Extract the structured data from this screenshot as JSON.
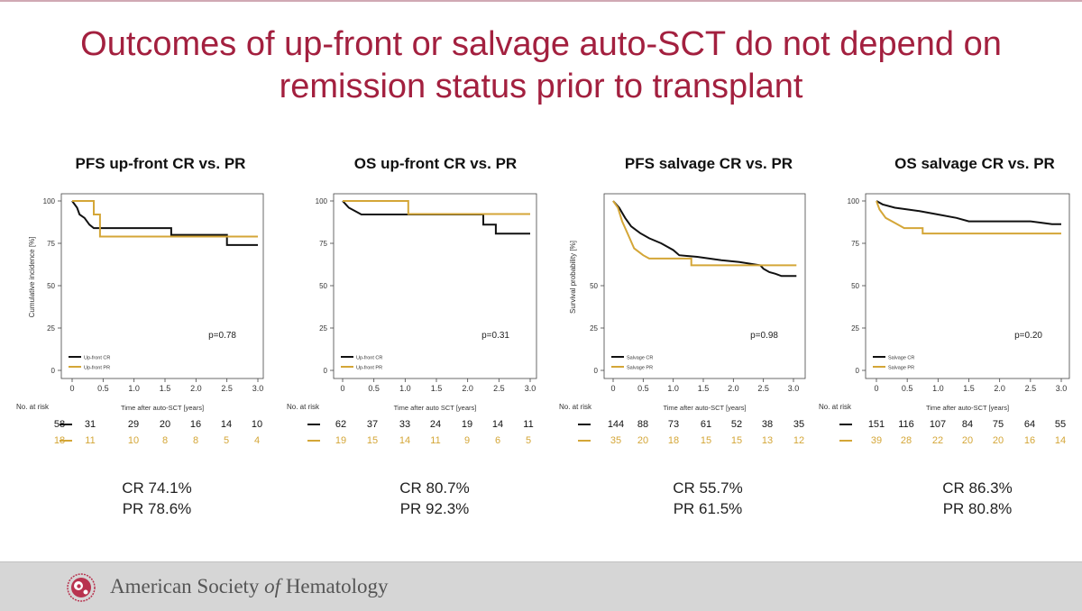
{
  "slide": {
    "title_line1": "Outcomes of up-front or salvage auto-SCT do not depend on",
    "title_line2": "remission status prior to transplant",
    "footer": {
      "org_pre": "American Society ",
      "org_of": "of",
      "org_post": " Hematology"
    }
  },
  "colors": {
    "title": "#a3203f",
    "cr": "#111111",
    "pr": "#d4a637"
  },
  "chart_data": [
    {
      "type": "line",
      "title": "PFS up-front CR vs. PR",
      "ylabel": "Cumulative incidence [%]",
      "xlabel": "Time after auto-SCT [years]",
      "xlim": [
        0,
        3
      ],
      "ylim": [
        0,
        100
      ],
      "x_ticks": [
        "0",
        "0.5",
        "1.0",
        "1.5",
        "2.0",
        "2.5",
        "3.0"
      ],
      "y_ticks": [
        "0",
        "25",
        "50",
        "75",
        "100"
      ],
      "p_value": "p=0.78",
      "series": [
        {
          "name": "Up-front CR",
          "color": "#111111",
          "points": [
            [
              0,
              100
            ],
            [
              0.08,
              96
            ],
            [
              0.12,
              92
            ],
            [
              0.2,
              90
            ],
            [
              0.28,
              86
            ],
            [
              0.35,
              84
            ],
            [
              1.6,
              84
            ],
            [
              1.6,
              80
            ],
            [
              2.5,
              80
            ],
            [
              2.5,
              74
            ],
            [
              3.0,
              74
            ]
          ]
        },
        {
          "name": "Up-front PR",
          "color": "#d4a637",
          "points": [
            [
              0,
              100
            ],
            [
              0.35,
              100
            ],
            [
              0.35,
              92
            ],
            [
              0.45,
              92
            ],
            [
              0.45,
              79
            ],
            [
              3.0,
              79
            ]
          ]
        }
      ],
      "at_risk": {
        "label": "No. at risk",
        "rows": [
          {
            "color": "#111111",
            "values": [
              "58",
              "31",
              "29",
              "20",
              "16",
              "14",
              "10"
            ]
          },
          {
            "color": "#d4a637",
            "values": [
              "18",
              "11",
              "10",
              "8",
              "8",
              "5",
              "4"
            ]
          }
        ]
      },
      "summary": {
        "cr": "CR 74.1%",
        "pr": "PR 78.6%"
      }
    },
    {
      "type": "line",
      "title": "OS up-front CR vs. PR",
      "ylabel": "",
      "xlabel": "Time after auto SCT [years]",
      "xlim": [
        0,
        3
      ],
      "ylim": [
        0,
        100
      ],
      "x_ticks": [
        "0",
        "0.5",
        "1.0",
        "1.5",
        "2.0",
        "2.5",
        "3.0"
      ],
      "y_ticks": [
        "0",
        "25",
        "50",
        "75",
        "100"
      ],
      "p_value": "p=0.31",
      "series": [
        {
          "name": "Up-front CR",
          "color": "#111111",
          "points": [
            [
              0,
              100
            ],
            [
              0.05,
              98
            ],
            [
              0.1,
              96
            ],
            [
              0.2,
              94
            ],
            [
              0.3,
              92
            ],
            [
              2.25,
              92
            ],
            [
              2.25,
              86
            ],
            [
              2.45,
              86
            ],
            [
              2.45,
              80.7
            ],
            [
              3.0,
              80.7
            ]
          ]
        },
        {
          "name": "Up-front PR",
          "color": "#d4a637",
          "points": [
            [
              0,
              100
            ],
            [
              1.05,
              100
            ],
            [
              1.05,
              92.3
            ],
            [
              3.0,
              92.3
            ]
          ]
        }
      ],
      "at_risk": {
        "label": "No. at risk",
        "rows": [
          {
            "color": "#111111",
            "values": [
              "62",
              "37",
              "33",
              "24",
              "19",
              "14",
              "11"
            ]
          },
          {
            "color": "#d4a637",
            "values": [
              "19",
              "15",
              "14",
              "11",
              "9",
              "6",
              "5"
            ]
          }
        ]
      },
      "summary": {
        "cr": "CR 80.7%",
        "pr": "PR 92.3%"
      }
    },
    {
      "type": "line",
      "title": "PFS salvage CR vs. PR",
      "ylabel": "Survival probability [%]",
      "xlabel": "Time after auto-SCT [years]",
      "xlim": [
        0,
        3
      ],
      "ylim": [
        0,
        100
      ],
      "x_ticks": [
        "0",
        "0.5",
        "1.0",
        "1.5",
        "2.0",
        "2.5",
        "3.0"
      ],
      "y_ticks": [
        "0",
        "25",
        "50"
      ],
      "p_value": "p=0.98",
      "series": [
        {
          "name": "Salvage CR",
          "color": "#111111",
          "points": [
            [
              0,
              100
            ],
            [
              0.1,
              96
            ],
            [
              0.2,
              90
            ],
            [
              0.3,
              85
            ],
            [
              0.45,
              81
            ],
            [
              0.6,
              78
            ],
            [
              0.8,
              75
            ],
            [
              1.0,
              71
            ],
            [
              1.1,
              68
            ],
            [
              1.4,
              67
            ],
            [
              1.8,
              65
            ],
            [
              2.1,
              64
            ],
            [
              2.45,
              62
            ],
            [
              2.5,
              60
            ],
            [
              2.6,
              58
            ],
            [
              2.7,
              57
            ],
            [
              2.8,
              55.7
            ],
            [
              3.05,
              55.7
            ]
          ]
        },
        {
          "name": "Salvage PR",
          "color": "#d4a637",
          "points": [
            [
              0,
              100
            ],
            [
              0.08,
              96
            ],
            [
              0.15,
              88
            ],
            [
              0.25,
              80
            ],
            [
              0.35,
              72
            ],
            [
              0.5,
              68
            ],
            [
              0.6,
              66
            ],
            [
              1.3,
              66
            ],
            [
              1.3,
              62
            ],
            [
              3.05,
              62
            ]
          ]
        }
      ],
      "at_risk": {
        "label": "No. at risk",
        "rows": [
          {
            "color": "#111111",
            "values": [
              "144",
              "88",
              "73",
              "61",
              "52",
              "38",
              "35"
            ]
          },
          {
            "color": "#d4a637",
            "values": [
              "35",
              "20",
              "18",
              "15",
              "15",
              "13",
              "12"
            ]
          }
        ]
      },
      "summary": {
        "cr": "CR 55.7%",
        "pr": "PR 61.5%"
      }
    },
    {
      "type": "line",
      "title": "OS salvage CR vs. PR",
      "ylabel": "",
      "xlabel": "Time after auto-SCT [years]",
      "xlim": [
        0,
        3
      ],
      "ylim": [
        0,
        100
      ],
      "x_ticks": [
        "0",
        "0.5",
        "1.0",
        "1.5",
        "2.0",
        "2.5",
        "3.0"
      ],
      "y_ticks": [
        "0",
        "25",
        "50",
        "75",
        "100"
      ],
      "p_value": "p=0.20",
      "series": [
        {
          "name": "Salvage CR",
          "color": "#111111",
          "points": [
            [
              0,
              100
            ],
            [
              0.1,
              98
            ],
            [
              0.3,
              96
            ],
            [
              0.5,
              95
            ],
            [
              0.7,
              94
            ],
            [
              1.0,
              92
            ],
            [
              1.3,
              90
            ],
            [
              1.5,
              88
            ],
            [
              2.5,
              88
            ],
            [
              2.7,
              87
            ],
            [
              2.85,
              86.3
            ],
            [
              3.0,
              86.3
            ]
          ]
        },
        {
          "name": "Salvage PR",
          "color": "#d4a637",
          "points": [
            [
              0,
              100
            ],
            [
              0.05,
              95
            ],
            [
              0.15,
              90
            ],
            [
              0.3,
              87
            ],
            [
              0.45,
              84
            ],
            [
              0.75,
              84
            ],
            [
              0.75,
              80.8
            ],
            [
              3.0,
              80.8
            ]
          ]
        }
      ],
      "at_risk": {
        "label": "No. at risk",
        "rows": [
          {
            "color": "#111111",
            "values": [
              "151",
              "116",
              "107",
              "84",
              "75",
              "64",
              "55"
            ]
          },
          {
            "color": "#d4a637",
            "values": [
              "39",
              "28",
              "22",
              "20",
              "20",
              "16",
              "14"
            ]
          }
        ]
      },
      "summary": {
        "cr": "CR 86.3%",
        "pr": "PR 80.8%"
      }
    }
  ]
}
